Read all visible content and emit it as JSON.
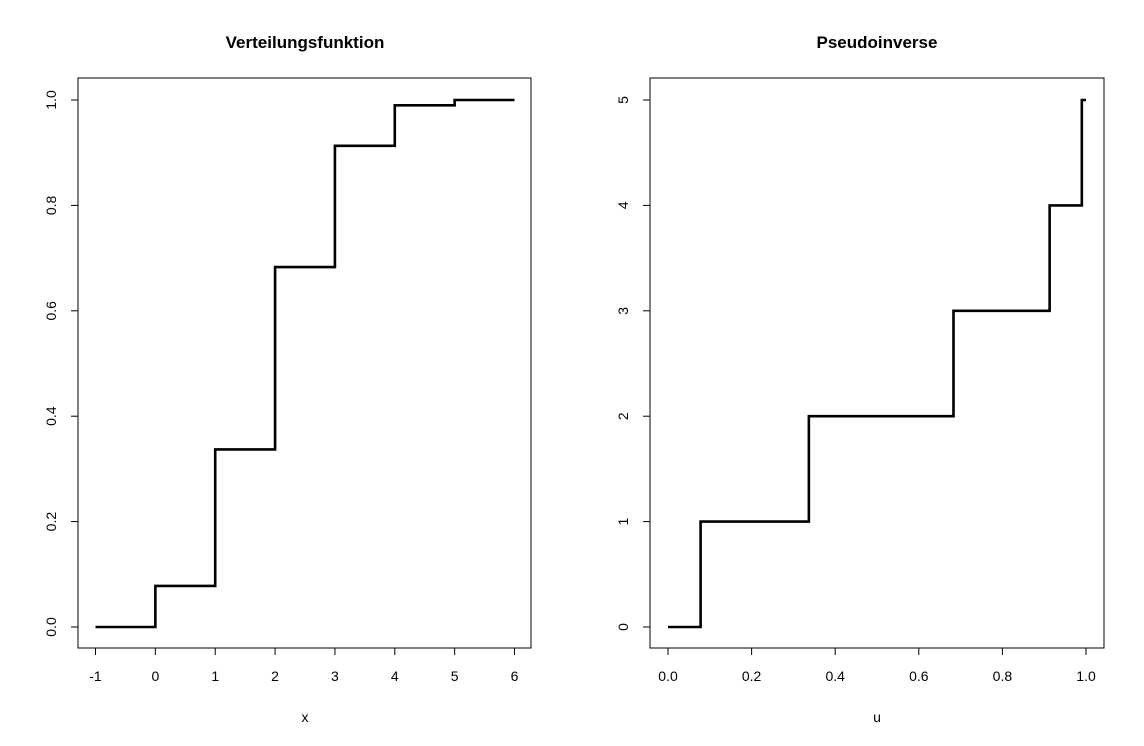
{
  "chart_data": [
    {
      "type": "line",
      "step": true,
      "title": "Verteilungsfunktion",
      "xlabel": "x",
      "ylabel": "",
      "xlim": [
        -1,
        6
      ],
      "ylim": [
        0,
        1
      ],
      "x_ticks": [
        -1,
        0,
        1,
        2,
        3,
        4,
        5,
        6
      ],
      "x_tick_labels": [
        "-1",
        "0",
        "1",
        "2",
        "3",
        "4",
        "5",
        "6"
      ],
      "y_ticks": [
        0,
        0.2,
        0.4,
        0.6,
        0.8,
        1.0
      ],
      "y_tick_labels": [
        "0.0",
        "0.2",
        "0.4",
        "0.6",
        "0.8",
        "1.0"
      ],
      "grid": false,
      "series": [
        {
          "x": [
            -1,
            0,
            1,
            2,
            3,
            4,
            5,
            6
          ],
          "y": [
            0,
            0.078,
            0.337,
            0.683,
            0.913,
            0.99,
            1.0,
            1.0
          ]
        }
      ]
    },
    {
      "type": "line",
      "step": true,
      "title": "Pseudoinverse",
      "xlabel": "u",
      "ylabel": "",
      "xlim": [
        0,
        1
      ],
      "ylim": [
        0,
        5
      ],
      "x_ticks": [
        0,
        0.2,
        0.4,
        0.6,
        0.8,
        1.0
      ],
      "x_tick_labels": [
        "0.0",
        "0.2",
        "0.4",
        "0.6",
        "0.8",
        "1.0"
      ],
      "y_ticks": [
        0,
        1,
        2,
        3,
        4,
        5
      ],
      "y_tick_labels": [
        "0",
        "1",
        "2",
        "3",
        "4",
        "5"
      ],
      "grid": false,
      "series": [
        {
          "x": [
            0,
            0.078,
            0.337,
            0.683,
            0.913,
            0.99,
            1.0
          ],
          "y": [
            0,
            1,
            2,
            3,
            4,
            5,
            5
          ]
        }
      ]
    }
  ]
}
